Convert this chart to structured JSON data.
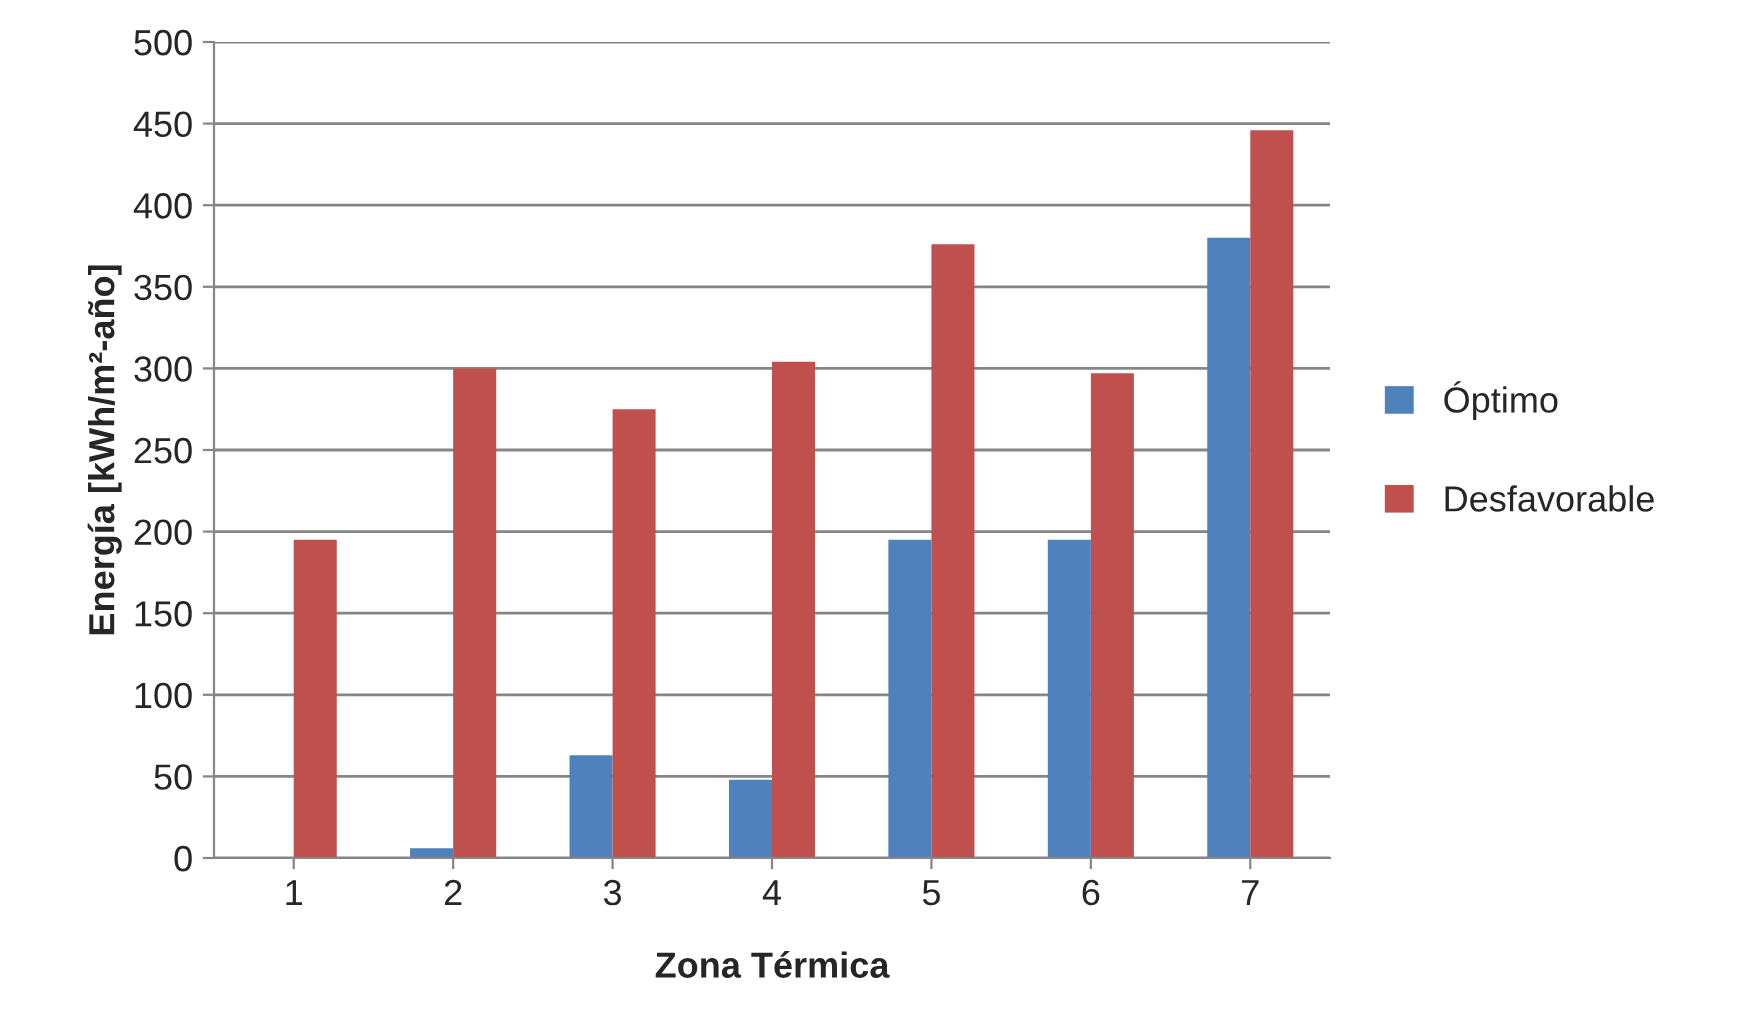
{
  "chart_data": {
    "type": "bar",
    "xlabel": "Zona Térmica",
    "ylabel": "Energía [kWh/m²-año]",
    "categories": [
      "1",
      "2",
      "3",
      "4",
      "5",
      "6",
      "7"
    ],
    "series": [
      {
        "name": "Óptimo",
        "color": "#4f81bd",
        "values": [
          null,
          6,
          63,
          48,
          195,
          195,
          380
        ]
      },
      {
        "name": "Desfavorable",
        "color": "#c0504d",
        "values": [
          195,
          300,
          275,
          304,
          376,
          297,
          446
        ]
      }
    ],
    "ylim": [
      0,
      500
    ],
    "yticks": [
      0,
      50,
      100,
      150,
      200,
      250,
      300,
      350,
      400,
      450,
      500
    ],
    "grid": "y",
    "legend": "right"
  }
}
